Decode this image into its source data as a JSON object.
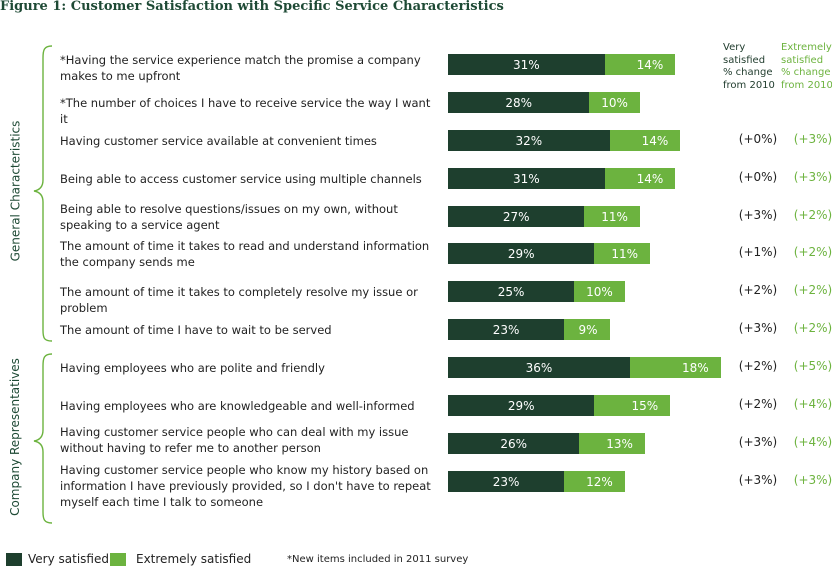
{
  "chart_data": {
    "type": "bar",
    "stacked": true,
    "orientation": "horizontal",
    "title": "Figure 1: Customer Satisfaction with Specific Service Characteristics",
    "groups": [
      {
        "name": "General Characteristics",
        "start": 0,
        "end": 7
      },
      {
        "name": "Company Representatives",
        "start": 8,
        "end": 11
      }
    ],
    "categories": [
      "*Having the service experience match the promise a company makes to me upfront",
      "*The number of choices I have to receive service the way I want it",
      "Having customer service available at convenient times",
      "Being able to access customer service using multiple channels",
      "Being able to resolve questions/issues on my own, without speaking to a service agent",
      "The amount of time it takes to read and understand information the company sends me",
      "The amount of time it takes to completely resolve my issue or problem",
      "The amount of time I have to wait to be served",
      "Having employees who are polite and friendly",
      "Having employees who are knowledgeable and well-informed",
      "Having customer service people who can deal with my issue without having to refer me to another person",
      "Having customer service people who know my history based on information I have previously provided, so I don't have to repeat myself each time I talk to someone"
    ],
    "series": [
      {
        "name": "Very satisfied",
        "color": "#1e3f2e",
        "values": [
          31,
          28,
          32,
          31,
          27,
          29,
          25,
          23,
          36,
          29,
          26,
          23
        ],
        "labels": [
          "31%",
          "28%",
          "32%",
          "31%",
          "27%",
          "29%",
          "25%",
          "23%",
          "36%",
          "29%",
          "26%",
          "23%"
        ]
      },
      {
        "name": "Extremely satisfied",
        "color": "#6cb33f",
        "values": [
          14,
          10,
          14,
          14,
          11,
          11,
          10,
          9,
          18,
          15,
          13,
          12
        ],
        "labels": [
          "14%",
          "10%",
          "14%",
          "14%",
          "11%",
          "11%",
          "10%",
          "9%",
          "18%",
          "15%",
          "13%",
          "12%"
        ]
      }
    ],
    "change_headers": {
      "very_satisfied": [
        "Very",
        "satisfied",
        "% change",
        "from 2010"
      ],
      "extremely_satisfied": [
        "Extremely",
        "satisfied",
        "% change",
        "from 2010"
      ]
    },
    "change_very_satisfied": [
      "",
      "",
      "(+0%)",
      "(+0%)",
      "(+3%)",
      "(+1%)",
      "(+2%)",
      "(+3%)",
      "(+2%)",
      "(+2%)",
      "(+3%)",
      "(+3%)"
    ],
    "change_extremely_satisfied": [
      "",
      "",
      "(+3%)",
      "(+3%)",
      "(+2%)",
      "(+2%)",
      "(+2%)",
      "(+2%)",
      "(+5%)",
      "(+4%)",
      "(+4%)",
      "(+3%)"
    ],
    "legend": [
      "Very satisfied",
      "Extremely satisfied"
    ],
    "legend_position": "bottom-left",
    "footnote": "*New items included in 2011 survey",
    "grid": false
  }
}
